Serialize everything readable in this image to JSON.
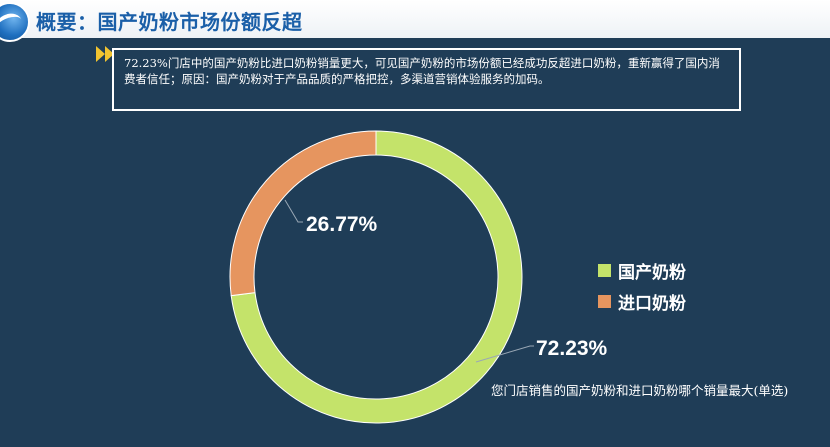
{
  "header": {
    "title": "概要：国产奶粉市场份额反超"
  },
  "note": {
    "text": "72.23%门店中的国产奶粉比进口奶粉销量更大，可见国产奶粉的市场份额已经成功反超进口奶粉，重新赢得了国内消费者信任；原因：国产奶粉对于产品品质的严格把控，多渠道营销体验服务的加码。"
  },
  "colors": {
    "background": "#1f3d57",
    "domestic": "#c4e36a",
    "imported": "#e6955f",
    "title": "#1a5fa8",
    "accent_arrow": "#f2c430"
  },
  "chart_data": {
    "type": "pie",
    "variant": "donut",
    "categories": [
      "国产奶粉",
      "进口奶粉"
    ],
    "values": [
      72.23,
      26.77
    ],
    "data_labels": [
      "72.23%",
      "26.77%"
    ],
    "legend_position": "right",
    "caption": "您门店销售的国产奶粉和进口奶粉哪个销量最大(单选)"
  },
  "icons": [
    "logo-icon",
    "double-arrow-icon"
  ]
}
